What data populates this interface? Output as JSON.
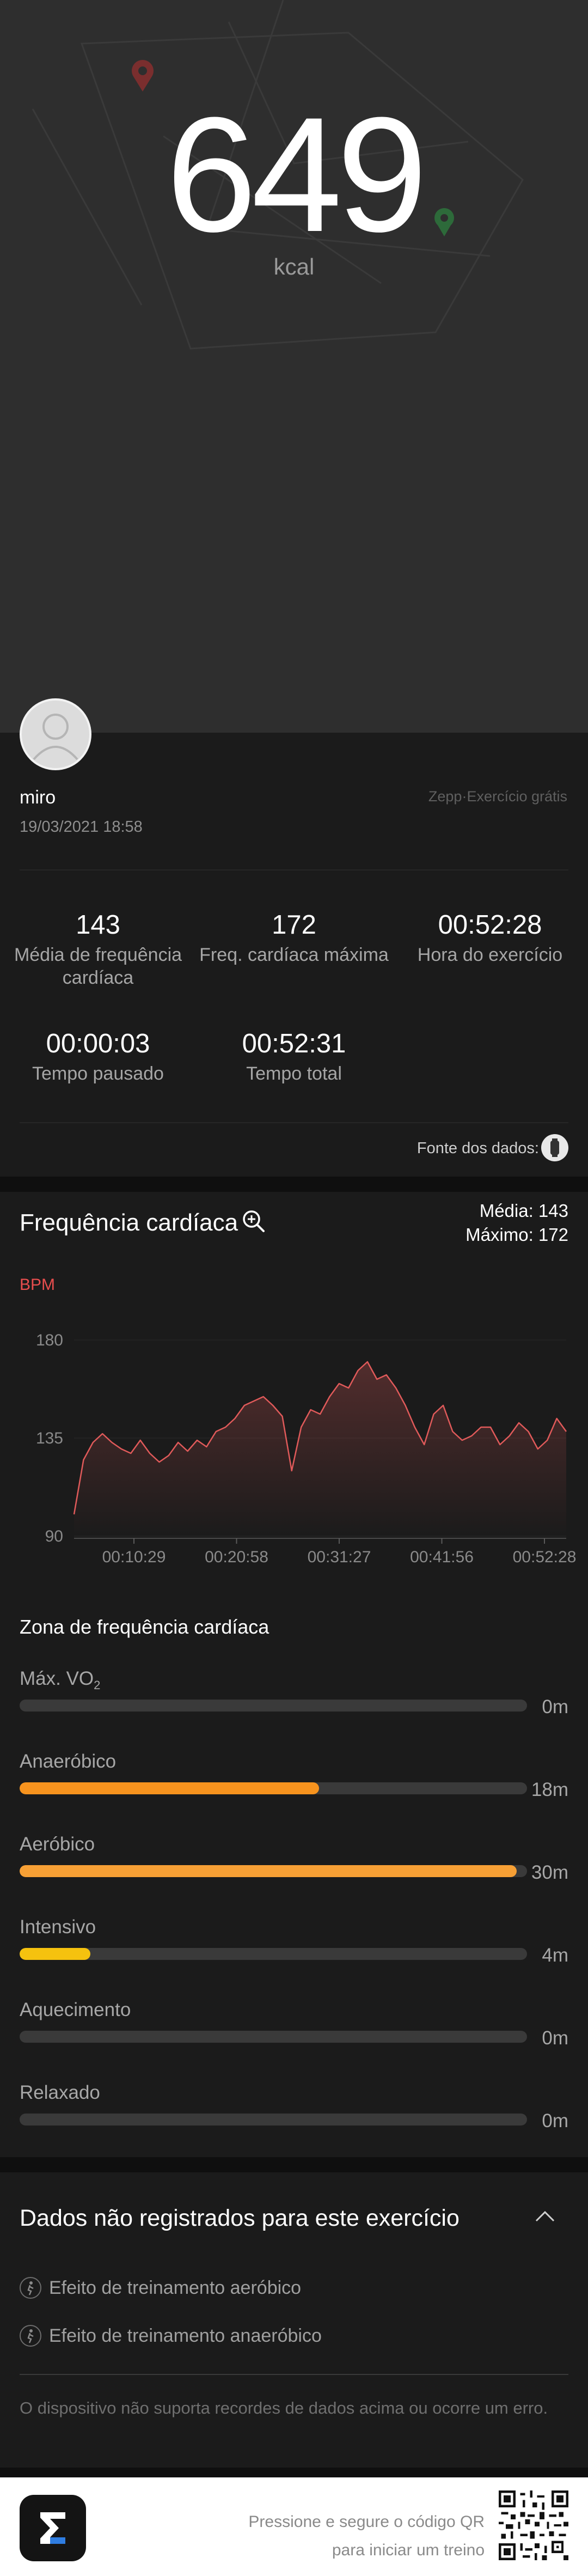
{
  "summary": {
    "calories": "649",
    "calories_unit": "kcal"
  },
  "user": {
    "name": "miro",
    "datetime": "19/03/2021 18:58",
    "source_app": "Zepp·Exercício grátis"
  },
  "stats": [
    {
      "value": "143",
      "label_1": "Média de frequência",
      "label_2": "cardíaca"
    },
    {
      "value": "172",
      "label_1": "Freq. cardíaca máxima",
      "label_2": ""
    },
    {
      "value": "00:52:28",
      "label_1": "Hora do exercício",
      "label_2": ""
    },
    {
      "value": "00:00:03",
      "label_1": "Tempo pausado",
      "label_2": ""
    },
    {
      "value": "00:52:31",
      "label_1": "Tempo total",
      "label_2": ""
    }
  ],
  "data_source_label": "Fonte dos dados:",
  "heart_rate": {
    "title": "Frequência cardíaca",
    "average": "Média: 143",
    "maximum": "Máximo: 172",
    "unit": "BPM"
  },
  "chart_data": {
    "type": "line",
    "title": "",
    "xlabel": "",
    "ylabel": "BPM",
    "y_ticks": [
      90,
      135,
      180
    ],
    "ylim": [
      90,
      180
    ],
    "x_tick_labels": [
      "00:10:29",
      "00:20:58",
      "00:31:27",
      "00:41:56",
      "00:52:28"
    ],
    "x_minutes": [
      0,
      1,
      2,
      3,
      4,
      5,
      6,
      7,
      8,
      9,
      10,
      11,
      12,
      13,
      14,
      15,
      16,
      17,
      18,
      19,
      20,
      21,
      22,
      23,
      24,
      25,
      26,
      27,
      28,
      29,
      30,
      31,
      32,
      33,
      34,
      35,
      36,
      37,
      38,
      39,
      40,
      41,
      42,
      43,
      44,
      45,
      46,
      47,
      48,
      49,
      50,
      51,
      52
    ],
    "values": [
      100,
      125,
      133,
      137,
      133,
      130,
      128,
      134,
      128,
      124,
      127,
      133,
      129,
      134,
      131,
      138,
      140,
      144,
      150,
      152,
      154,
      150,
      145,
      120,
      140,
      148,
      146,
      154,
      160,
      158,
      166,
      170,
      162,
      164,
      158,
      150,
      140,
      132,
      146,
      150,
      138,
      134,
      136,
      140,
      140,
      132,
      136,
      142,
      138,
      130,
      134,
      144,
      138
    ],
    "color": "#e05a5a"
  },
  "zones": {
    "title": "Zona de frequência cardíaca",
    "items": [
      {
        "label": "Máx. VO",
        "label_sub": "2",
        "value": "0m",
        "fraction": 0,
        "color": "#3a3a3a"
      },
      {
        "label": "Anaeróbico",
        "label_sub": "",
        "value": "18m",
        "fraction": 0.59,
        "color": "#f7931e"
      },
      {
        "label": "Aeróbico",
        "label_sub": "",
        "value": "30m",
        "fraction": 0.98,
        "color": "#f7a035"
      },
      {
        "label": "Intensivo",
        "label_sub": "",
        "value": "4m",
        "fraction": 0.14,
        "color": "#f5c20f"
      },
      {
        "label": "Aquecimento",
        "label_sub": "",
        "value": "0m",
        "fraction": 0,
        "color": "#3a3a3a"
      },
      {
        "label": "Relaxado",
        "label_sub": "",
        "value": "0m",
        "fraction": 0,
        "color": "#3a3a3a"
      }
    ]
  },
  "not_recorded": {
    "title": "Dados não registrados para este exercício",
    "items": [
      "Efeito de treinamento aeróbico",
      "Efeito de treinamento anaeróbico"
    ],
    "note": "O dispositivo não suporta recordes de dados acima ou ocorre um erro."
  },
  "footer": {
    "line_1": "Pressione e segure o código QR",
    "line_2": "para iniciar um treino"
  },
  "colors": {
    "hero_bg": "#2e2e2e",
    "page_bg": "#1b1b1b",
    "bpm_red": "#e84e4e"
  }
}
